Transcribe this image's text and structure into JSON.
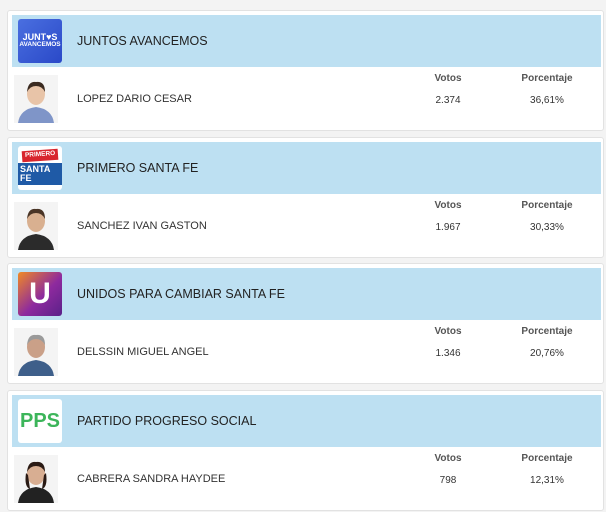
{
  "cards": [
    {
      "logo": [
        "JUNT♥S",
        "AVANCEMOS"
      ],
      "party": "JUNTOS AVANCEMOS",
      "candidate": "LOPEZ DARIO CESAR",
      "votes_label": "Votos",
      "percent_label": "Porcentaje",
      "votes": "2.374",
      "percent": "36,61%"
    },
    {
      "logo": [
        "PRIMERO",
        "SANTA FE"
      ],
      "party": "PRIMERO SANTA FE",
      "candidate": "SANCHEZ IVAN GASTON",
      "votes_label": "Votos",
      "percent_label": "Porcentaje",
      "votes": "1.967",
      "percent": "30,33%"
    },
    {
      "logo": [
        "U"
      ],
      "party": "UNIDOS PARA CAMBIAR SANTA FE",
      "candidate": "DELSSIN MIGUEL ANGEL",
      "votes_label": "Votos",
      "percent_label": "Porcentaje",
      "votes": "1.346",
      "percent": "20,76%"
    },
    {
      "logo": [
        "PPS"
      ],
      "party": "PARTIDO PROGRESO SOCIAL",
      "candidate": "CABRERA SANDRA HAYDEE",
      "votes_label": "Votos",
      "percent_label": "Porcentaje",
      "votes": "798",
      "percent": "12,31%"
    }
  ]
}
